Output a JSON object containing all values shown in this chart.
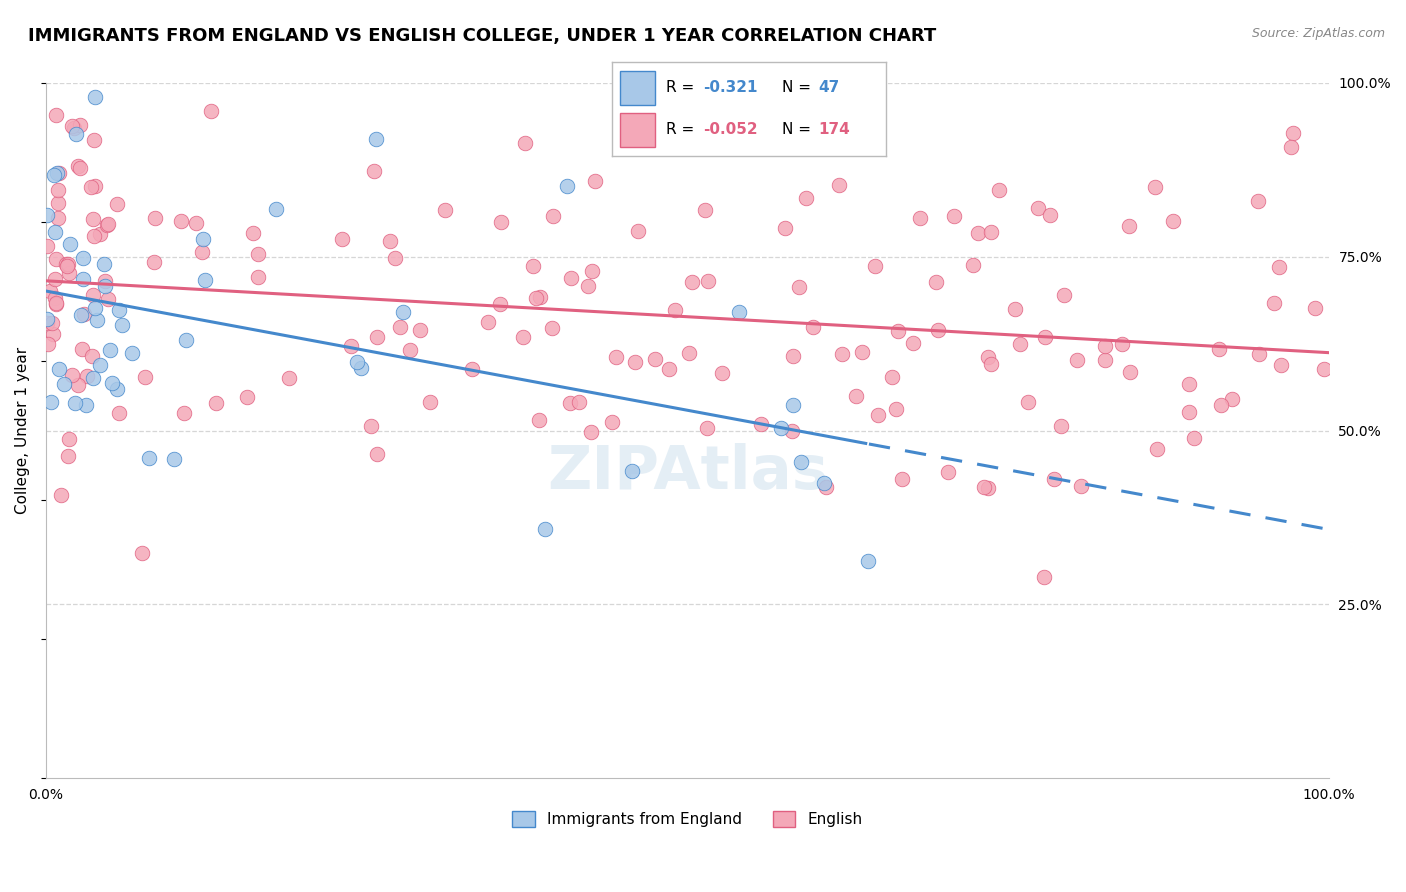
{
  "title": "IMMIGRANTS FROM ENGLAND VS ENGLISH COLLEGE, UNDER 1 YEAR CORRELATION CHART",
  "source": "Source: ZipAtlas.com",
  "ylabel": "College, Under 1 year",
  "legend_label_blue": "Immigrants from England",
  "legend_label_pink": "English",
  "blue_color": "#A8C8E8",
  "pink_color": "#F4A8B8",
  "blue_line_color": "#4488CC",
  "pink_line_color": "#E06080",
  "blue_r": -0.321,
  "blue_n": 47,
  "pink_r": -0.052,
  "pink_n": 174,
  "xmin": 0.0,
  "xmax": 1.0,
  "ymin": 0.0,
  "ymax": 1.0,
  "grid_color": "#CCCCCC",
  "background_color": "#FFFFFF",
  "watermark": "ZIPAtlas"
}
